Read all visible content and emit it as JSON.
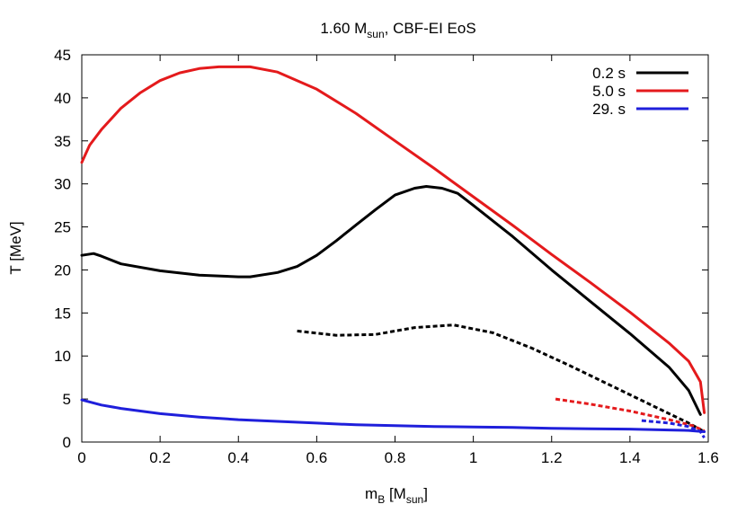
{
  "chart_data": {
    "type": "line",
    "title": "1.60 M",
    "title_sub": "sun",
    "title_rest": ", CBF-EI EoS",
    "xlabel": "m",
    "xlabel_sub": "B",
    "xlabel_mid": " [M",
    "xlabel_sub2": "sun",
    "xlabel_end": "]",
    "ylabel": "T [MeV]",
    "xlim": [
      0,
      1.6
    ],
    "ylim": [
      0,
      45
    ],
    "xticks": [
      0,
      0.2,
      0.4,
      0.6,
      0.8,
      1,
      1.2,
      1.4,
      1.6
    ],
    "yticks": [
      0,
      5,
      10,
      15,
      20,
      25,
      30,
      35,
      40,
      45
    ],
    "xtick_labels": [
      "0",
      "0.2",
      "0.4",
      "0.6",
      "0.8",
      "1",
      "1.2",
      "1.4",
      "1.6"
    ],
    "ytick_labels": [
      "0",
      "5",
      "10",
      "15",
      "20",
      "25",
      "30",
      "35",
      "40",
      "45"
    ],
    "grid": false,
    "legend_position": "top-right",
    "series": [
      {
        "name": "0.2 s",
        "color": "#000000",
        "dash": false,
        "show_in_legend": true,
        "x": [
          0,
          0.03,
          0.05,
          0.1,
          0.2,
          0.3,
          0.4,
          0.43,
          0.5,
          0.55,
          0.6,
          0.65,
          0.7,
          0.75,
          0.8,
          0.85,
          0.88,
          0.92,
          0.96,
          1.0,
          1.1,
          1.2,
          1.3,
          1.4,
          1.5,
          1.55,
          1.58
        ],
        "y": [
          21.7,
          21.9,
          21.6,
          20.7,
          19.9,
          19.4,
          19.2,
          19.2,
          19.7,
          20.4,
          21.7,
          23.4,
          25.2,
          27.0,
          28.7,
          29.5,
          29.7,
          29.5,
          28.9,
          27.5,
          23.9,
          20.0,
          16.3,
          12.6,
          8.7,
          6.0,
          3.2
        ]
      },
      {
        "name": "0.2 s (dotted)",
        "color": "#000000",
        "dash": true,
        "show_in_legend": false,
        "x": [
          0.55,
          0.65,
          0.75,
          0.85,
          0.95,
          1.05,
          1.15,
          1.25,
          1.35,
          1.45,
          1.55,
          1.59
        ],
        "y": [
          12.9,
          12.4,
          12.5,
          13.3,
          13.6,
          12.7,
          10.9,
          8.8,
          6.6,
          4.4,
          2.2,
          1.2
        ]
      },
      {
        "name": "5.0 s",
        "color": "#e41a1c",
        "dash": false,
        "show_in_legend": true,
        "x": [
          0,
          0.02,
          0.05,
          0.1,
          0.15,
          0.2,
          0.25,
          0.3,
          0.35,
          0.4,
          0.43,
          0.5,
          0.6,
          0.7,
          0.8,
          0.9,
          1.0,
          1.1,
          1.2,
          1.3,
          1.4,
          1.5,
          1.55,
          1.58,
          1.59
        ],
        "y": [
          32.5,
          34.5,
          36.3,
          38.8,
          40.6,
          42.0,
          42.9,
          43.4,
          43.6,
          43.6,
          43.6,
          43.0,
          41.0,
          38.2,
          35.0,
          31.8,
          28.5,
          25.2,
          21.8,
          18.5,
          15.1,
          11.5,
          9.4,
          7.0,
          3.4
        ]
      },
      {
        "name": "5.0 s (dotted)",
        "color": "#e41a1c",
        "dash": true,
        "show_in_legend": false,
        "x": [
          1.21,
          1.3,
          1.4,
          1.5,
          1.56,
          1.59
        ],
        "y": [
          5.0,
          4.4,
          3.6,
          2.6,
          1.9,
          1.3
        ]
      },
      {
        "name": "29. s",
        "color": "#1f1fdb",
        "dash": false,
        "show_in_legend": true,
        "x": [
          0,
          0.05,
          0.1,
          0.2,
          0.3,
          0.4,
          0.5,
          0.6,
          0.7,
          0.8,
          0.9,
          1.0,
          1.1,
          1.2,
          1.3,
          1.4,
          1.5,
          1.55,
          1.59
        ],
        "y": [
          4.9,
          4.3,
          3.9,
          3.3,
          2.9,
          2.6,
          2.4,
          2.2,
          2.0,
          1.9,
          1.8,
          1.75,
          1.7,
          1.6,
          1.55,
          1.5,
          1.4,
          1.35,
          1.2
        ]
      },
      {
        "name": "29. s (dotted)",
        "color": "#1f1fdb",
        "dash": true,
        "show_in_legend": false,
        "x": [
          1.43,
          1.5,
          1.55,
          1.58,
          1.59
        ],
        "y": [
          2.5,
          2.2,
          1.8,
          1.2,
          0.5
        ]
      }
    ]
  }
}
